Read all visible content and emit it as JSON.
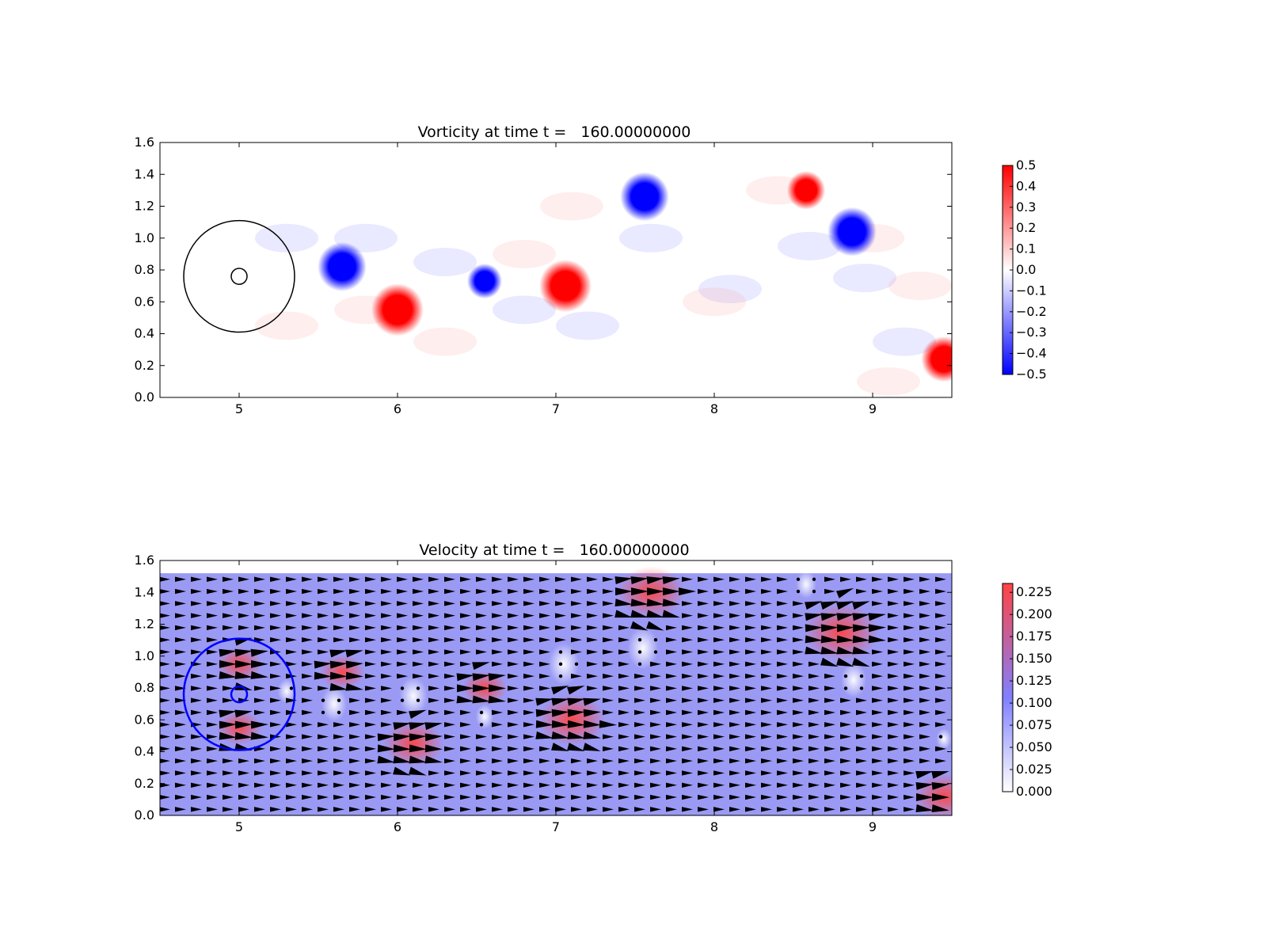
{
  "figure": {
    "background": "#ffffff"
  },
  "chart_data": [
    {
      "type": "heatmap",
      "title": "Vorticity at time t =   160.00000000",
      "xlabel": "",
      "ylabel": "",
      "xlim": [
        4.5,
        9.5
      ],
      "ylim": [
        0.0,
        1.6
      ],
      "xticks": [
        5,
        6,
        7,
        8,
        9
      ],
      "xtick_labels": [
        "5",
        "6",
        "7",
        "8",
        "9"
      ],
      "yticks": [
        0.0,
        0.2,
        0.4,
        0.6,
        0.8,
        1.0,
        1.2,
        1.4,
        1.6
      ],
      "ytick_labels": [
        "0.0",
        "0.2",
        "0.4",
        "0.6",
        "0.8",
        "1.0",
        "1.2",
        "1.4",
        "1.6"
      ],
      "grid": false,
      "colormap": {
        "low": "#0000ff",
        "mid": "#ffffff",
        "high": "#ff0000"
      },
      "colorbar": {
        "range": [
          -0.5,
          0.5
        ],
        "ticks": [
          0.5,
          0.4,
          0.3,
          0.2,
          0.1,
          0.0,
          -0.1,
          -0.2,
          -0.3,
          -0.4,
          -0.5
        ],
        "tick_labels": [
          "0.5",
          "0.4",
          "0.3",
          "0.2",
          "0.1",
          "0.0",
          "−0.1",
          "−0.2",
          "−0.3",
          "−0.4",
          "−0.5"
        ]
      },
      "vortices": [
        {
          "x": 5.65,
          "y": 0.82,
          "r": 0.14,
          "value": -0.5
        },
        {
          "x": 6.0,
          "y": 0.55,
          "r": 0.15,
          "value": 0.5
        },
        {
          "x": 6.55,
          "y": 0.73,
          "r": 0.1,
          "value": -0.5
        },
        {
          "x": 7.06,
          "y": 0.7,
          "r": 0.15,
          "value": 0.5
        },
        {
          "x": 7.56,
          "y": 1.26,
          "r": 0.14,
          "value": -0.5
        },
        {
          "x": 8.58,
          "y": 1.3,
          "r": 0.11,
          "value": 0.5
        },
        {
          "x": 8.87,
          "y": 1.04,
          "r": 0.14,
          "value": -0.5
        },
        {
          "x": 9.45,
          "y": 0.24,
          "r": 0.13,
          "value": 0.5
        }
      ],
      "overlay_circles": [
        {
          "x": 5.0,
          "y": 0.76,
          "radius": 0.35,
          "color": "#000000"
        },
        {
          "x": 5.0,
          "y": 0.76,
          "radius": 0.05,
          "color": "#000000"
        }
      ]
    },
    {
      "type": "heatmap",
      "title": "Velocity at time t =   160.00000000",
      "xlabel": "",
      "ylabel": "",
      "xlim": [
        4.5,
        9.5
      ],
      "ylim": [
        0.0,
        1.6
      ],
      "xticks": [
        5,
        6,
        7,
        8,
        9
      ],
      "xtick_labels": [
        "5",
        "6",
        "7",
        "8",
        "9"
      ],
      "yticks": [
        0.0,
        0.2,
        0.4,
        0.6,
        0.8,
        1.0,
        1.2,
        1.4,
        1.6
      ],
      "ytick_labels": [
        "0.0",
        "0.2",
        "0.4",
        "0.6",
        "0.8",
        "1.0",
        "1.2",
        "1.4",
        "1.6"
      ],
      "grid": false,
      "field_ymax": 1.52,
      "colormap": {
        "low": "#ffffff",
        "mid": "#8080ff",
        "high": "#ff4444"
      },
      "background_speed": 0.1,
      "colorbar": {
        "range": [
          0.0,
          0.235
        ],
        "ticks": [
          0.225,
          0.2,
          0.175,
          0.15,
          0.125,
          0.1,
          0.075,
          0.05,
          0.025,
          0.0
        ],
        "tick_labels": [
          "0.225",
          "0.200",
          "0.175",
          "0.150",
          "0.125",
          "0.100",
          "0.075",
          "0.050",
          "0.025",
          "0.000"
        ]
      },
      "fast_regions": [
        {
          "x": 7.6,
          "y": 1.4,
          "r": 0.18,
          "speed": 0.22
        },
        {
          "x": 8.8,
          "y": 1.15,
          "r": 0.2,
          "speed": 0.22
        },
        {
          "x": 6.1,
          "y": 0.45,
          "r": 0.16,
          "speed": 0.22
        },
        {
          "x": 7.1,
          "y": 0.6,
          "r": 0.18,
          "speed": 0.22
        },
        {
          "x": 6.55,
          "y": 0.8,
          "r": 0.12,
          "speed": 0.18
        },
        {
          "x": 5.65,
          "y": 0.9,
          "r": 0.12,
          "speed": 0.19
        },
        {
          "x": 5.0,
          "y": 0.95,
          "r": 0.12,
          "speed": 0.17
        },
        {
          "x": 5.0,
          "y": 0.55,
          "r": 0.12,
          "speed": 0.17
        },
        {
          "x": 9.45,
          "y": 0.12,
          "r": 0.16,
          "speed": 0.22
        }
      ],
      "slow_regions": [
        {
          "x": 5.6,
          "y": 0.7,
          "r": 0.1
        },
        {
          "x": 6.1,
          "y": 0.75,
          "r": 0.11
        },
        {
          "x": 6.55,
          "y": 0.62,
          "r": 0.07
        },
        {
          "x": 7.05,
          "y": 0.95,
          "r": 0.12
        },
        {
          "x": 7.55,
          "y": 1.05,
          "r": 0.12
        },
        {
          "x": 8.58,
          "y": 1.45,
          "r": 0.08
        },
        {
          "x": 8.88,
          "y": 0.85,
          "r": 0.1
        },
        {
          "x": 5.3,
          "y": 0.78,
          "r": 0.07
        },
        {
          "x": 9.45,
          "y": 0.48,
          "r": 0.06
        }
      ],
      "overlay_circles": [
        {
          "x": 5.0,
          "y": 0.76,
          "radius": 0.35,
          "color": "#0000ff"
        },
        {
          "x": 5.0,
          "y": 0.76,
          "radius": 0.05,
          "color": "#0000ff"
        }
      ]
    }
  ]
}
